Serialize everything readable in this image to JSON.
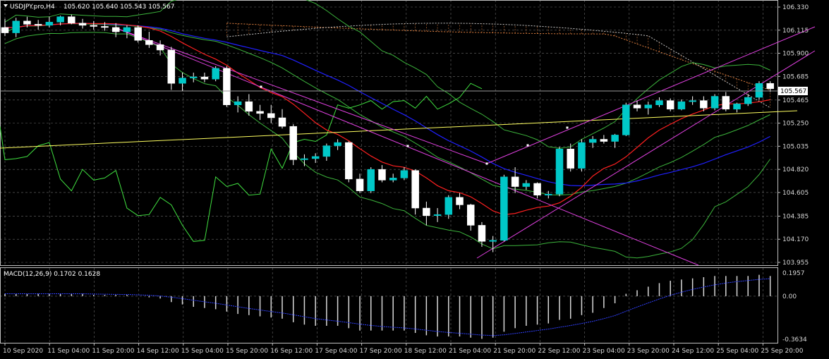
{
  "header": {
    "symbol_line": "USDJPY.pro,H4",
    "ohlc": "105.620 105.640 105.543 105.567"
  },
  "price_axis": {
    "ticks": [
      "106.330",
      "106.115",
      "105.900",
      "105.685",
      "105.465",
      "105.250",
      "105.035",
      "104.820",
      "104.605",
      "104.385",
      "104.170",
      "103.955"
    ],
    "current_price": "105.567",
    "min": 103.955,
    "max": 106.33
  },
  "macd": {
    "label": "MACD(12,26,9) 0.1702 0.1628",
    "ticks": [
      "0.1957",
      "0.00",
      "-0.3634"
    ],
    "max": 0.1957,
    "min": -0.3634
  },
  "time_axis": {
    "labels": [
      "10 Sep 2020",
      "11 Sep 04:00",
      "11 Sep 20:00",
      "14 Sep 12:00",
      "15 Sep 04:00",
      "15 Sep 20:00",
      "16 Sep 12:00",
      "17 Sep 04:00",
      "17 Sep 20:00",
      "18 Sep 12:00",
      "21 Sep 04:00",
      "21 Sep 20:00",
      "22 Sep 12:00",
      "23 Sep 04:00",
      "23 Sep 20:00",
      "24 Sep 12:00",
      "25 Sep 04:00",
      "25 Sep 20:00"
    ]
  },
  "colors": {
    "background": "#000000",
    "grid": "#c0c0c0",
    "bull_candle": "#00c8c8",
    "bear_candle": "#ffffff",
    "ma_red": "#ff2020",
    "ma_blue": "#2020ff",
    "bollinger": "#3cb43c",
    "chikou": "#40e040",
    "trend_magenta": "#e040e0",
    "trend_yellow": "#ffff60",
    "ichimoku_cloud": "#e08040"
  },
  "chart_data": {
    "type": "candlestick",
    "title": "USDJPY.pro,H4",
    "candles": [
      {
        "o": 106.14,
        "h": 106.22,
        "l": 106.06,
        "c": 106.09
      },
      {
        "o": 106.09,
        "h": 106.23,
        "l": 106.05,
        "c": 106.2
      },
      {
        "o": 106.2,
        "h": 106.24,
        "l": 106.14,
        "c": 106.17
      },
      {
        "o": 106.17,
        "h": 106.21,
        "l": 106.12,
        "c": 106.16
      },
      {
        "o": 106.16,
        "h": 106.24,
        "l": 106.14,
        "c": 106.19
      },
      {
        "o": 106.19,
        "h": 106.25,
        "l": 106.16,
        "c": 106.24
      },
      {
        "o": 106.24,
        "h": 106.26,
        "l": 106.17,
        "c": 106.18
      },
      {
        "o": 106.18,
        "h": 106.22,
        "l": 106.13,
        "c": 106.16
      },
      {
        "o": 106.16,
        "h": 106.2,
        "l": 106.12,
        "c": 106.15
      },
      {
        "o": 106.15,
        "h": 106.19,
        "l": 106.11,
        "c": 106.14
      },
      {
        "o": 106.14,
        "h": 106.18,
        "l": 106.05,
        "c": 106.1
      },
      {
        "o": 106.1,
        "h": 106.16,
        "l": 106.04,
        "c": 106.14
      },
      {
        "o": 106.14,
        "h": 106.16,
        "l": 106.0,
        "c": 106.02
      },
      {
        "o": 106.02,
        "h": 106.1,
        "l": 105.95,
        "c": 105.98
      },
      {
        "o": 105.98,
        "h": 106.02,
        "l": 105.88,
        "c": 105.93
      },
      {
        "o": 105.93,
        "h": 105.96,
        "l": 105.56,
        "c": 105.62
      },
      {
        "o": 105.62,
        "h": 105.72,
        "l": 105.55,
        "c": 105.67
      },
      {
        "o": 105.67,
        "h": 105.72,
        "l": 105.63,
        "c": 105.68
      },
      {
        "o": 105.68,
        "h": 105.72,
        "l": 105.63,
        "c": 105.66
      },
      {
        "o": 105.66,
        "h": 105.78,
        "l": 105.64,
        "c": 105.76
      },
      {
        "o": 105.76,
        "h": 105.78,
        "l": 105.4,
        "c": 105.42
      },
      {
        "o": 105.42,
        "h": 105.5,
        "l": 105.35,
        "c": 105.45
      },
      {
        "o": 105.45,
        "h": 105.52,
        "l": 105.32,
        "c": 105.36
      },
      {
        "o": 105.36,
        "h": 105.42,
        "l": 105.28,
        "c": 105.34
      },
      {
        "o": 105.34,
        "h": 105.42,
        "l": 105.25,
        "c": 105.3
      },
      {
        "o": 105.3,
        "h": 105.38,
        "l": 105.2,
        "c": 105.22
      },
      {
        "o": 105.22,
        "h": 105.24,
        "l": 104.86,
        "c": 104.91
      },
      {
        "o": 104.91,
        "h": 104.96,
        "l": 104.85,
        "c": 104.92
      },
      {
        "o": 104.92,
        "h": 104.97,
        "l": 104.88,
        "c": 104.94
      },
      {
        "o": 104.94,
        "h": 105.06,
        "l": 104.9,
        "c": 105.04
      },
      {
        "o": 105.04,
        "h": 105.1,
        "l": 105.0,
        "c": 105.07
      },
      {
        "o": 105.07,
        "h": 105.08,
        "l": 104.7,
        "c": 104.73
      },
      {
        "o": 104.73,
        "h": 104.78,
        "l": 104.6,
        "c": 104.62
      },
      {
        "o": 104.62,
        "h": 104.84,
        "l": 104.6,
        "c": 104.82
      },
      {
        "o": 104.82,
        "h": 104.86,
        "l": 104.7,
        "c": 104.72
      },
      {
        "o": 104.72,
        "h": 104.78,
        "l": 104.7,
        "c": 104.74
      },
      {
        "o": 104.74,
        "h": 104.84,
        "l": 104.72,
        "c": 104.81
      },
      {
        "o": 104.81,
        "h": 104.82,
        "l": 104.4,
        "c": 104.46
      },
      {
        "o": 104.46,
        "h": 104.52,
        "l": 104.3,
        "c": 104.39
      },
      {
        "o": 104.39,
        "h": 104.46,
        "l": 104.33,
        "c": 104.4
      },
      {
        "o": 104.4,
        "h": 104.58,
        "l": 104.36,
        "c": 104.56
      },
      {
        "o": 104.56,
        "h": 104.6,
        "l": 104.45,
        "c": 104.49
      },
      {
        "o": 104.49,
        "h": 104.5,
        "l": 104.25,
        "c": 104.3
      },
      {
        "o": 104.3,
        "h": 104.33,
        "l": 104.1,
        "c": 104.15
      },
      {
        "o": 104.15,
        "h": 104.2,
        "l": 104.05,
        "c": 104.16
      },
      {
        "o": 104.16,
        "h": 104.77,
        "l": 104.15,
        "c": 104.75
      },
      {
        "o": 104.75,
        "h": 104.84,
        "l": 104.6,
        "c": 104.66
      },
      {
        "o": 104.66,
        "h": 104.72,
        "l": 104.63,
        "c": 104.69
      },
      {
        "o": 104.69,
        "h": 104.7,
        "l": 104.55,
        "c": 104.58
      },
      {
        "o": 104.58,
        "h": 104.62,
        "l": 104.55,
        "c": 104.59
      },
      {
        "o": 104.59,
        "h": 105.03,
        "l": 104.57,
        "c": 105.01
      },
      {
        "o": 105.01,
        "h": 105.06,
        "l": 104.8,
        "c": 104.83
      },
      {
        "o": 104.83,
        "h": 105.1,
        "l": 104.8,
        "c": 105.07
      },
      {
        "o": 105.07,
        "h": 105.13,
        "l": 105.02,
        "c": 105.1
      },
      {
        "o": 105.1,
        "h": 105.14,
        "l": 105.06,
        "c": 105.08
      },
      {
        "o": 105.08,
        "h": 105.15,
        "l": 105.02,
        "c": 105.14
      },
      {
        "o": 105.14,
        "h": 105.44,
        "l": 105.13,
        "c": 105.42
      },
      {
        "o": 105.42,
        "h": 105.46,
        "l": 105.36,
        "c": 105.39
      },
      {
        "o": 105.39,
        "h": 105.45,
        "l": 105.33,
        "c": 105.42
      },
      {
        "o": 105.42,
        "h": 105.49,
        "l": 105.4,
        "c": 105.46
      },
      {
        "o": 105.46,
        "h": 105.48,
        "l": 105.36,
        "c": 105.38
      },
      {
        "o": 105.38,
        "h": 105.47,
        "l": 105.37,
        "c": 105.45
      },
      {
        "o": 105.45,
        "h": 105.5,
        "l": 105.42,
        "c": 105.46
      },
      {
        "o": 105.46,
        "h": 105.5,
        "l": 105.36,
        "c": 105.39
      },
      {
        "o": 105.39,
        "h": 105.52,
        "l": 105.37,
        "c": 105.5
      },
      {
        "o": 105.5,
        "h": 105.54,
        "l": 105.36,
        "c": 105.38
      },
      {
        "o": 105.38,
        "h": 105.44,
        "l": 105.35,
        "c": 105.43
      },
      {
        "o": 105.43,
        "h": 105.52,
        "l": 105.41,
        "c": 105.49
      },
      {
        "o": 105.49,
        "h": 105.64,
        "l": 105.47,
        "c": 105.62
      },
      {
        "o": 105.62,
        "h": 105.64,
        "l": 105.54,
        "c": 105.57
      }
    ],
    "macd_hist": [
      0.02,
      0.02,
      0.02,
      0.02,
      0.02,
      0.02,
      0.02,
      0.02,
      0.01,
      0.01,
      0.01,
      0.01,
      0.0,
      -0.01,
      -0.02,
      -0.05,
      -0.07,
      -0.09,
      -0.1,
      -0.11,
      -0.13,
      -0.15,
      -0.16,
      -0.17,
      -0.18,
      -0.19,
      -0.22,
      -0.24,
      -0.25,
      -0.25,
      -0.25,
      -0.27,
      -0.29,
      -0.29,
      -0.29,
      -0.29,
      -0.29,
      -0.31,
      -0.33,
      -0.34,
      -0.34,
      -0.34,
      -0.35,
      -0.36,
      -0.35,
      -0.3,
      -0.27,
      -0.25,
      -0.24,
      -0.23,
      -0.2,
      -0.19,
      -0.16,
      -0.14,
      -0.1,
      -0.06,
      0.02,
      0.05,
      0.08,
      0.11,
      0.13,
      0.14,
      0.15,
      0.16,
      0.17,
      0.17,
      0.17,
      0.17,
      0.18,
      0.17
    ],
    "ylim": [
      103.955,
      106.33
    ]
  }
}
